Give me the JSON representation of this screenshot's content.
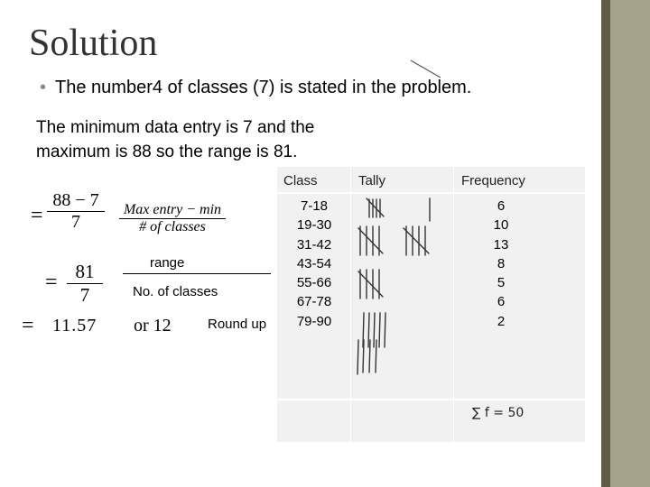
{
  "slide": {
    "title": "Solution",
    "bullet": "The number4 of classes (7) is stated  in the problem.",
    "paragraph": [
      "The minimum data entry is 7 and the",
      "maximum is 88  so the range is 81."
    ]
  },
  "work": {
    "eq_sign": "=",
    "frac1_num": "88 − 7",
    "frac1_den": "7",
    "formula_num": "Max entry − min",
    "formula_den": "# of  classes",
    "range_label": "range",
    "classes_label": "No. of classes",
    "frac2_num": "81",
    "frac2_den": "7",
    "result": "11.57",
    "or_text": "or 12",
    "round_up": "Round  up"
  },
  "table": {
    "headers": {
      "class": "Class",
      "tally": "Tally",
      "frequency": "Frequency"
    },
    "classes": [
      "7-18",
      "19-30",
      "31-42",
      "43-54",
      "55-66",
      "67-78",
      "79-90"
    ],
    "frequencies": [
      "6",
      "10",
      "13",
      "8",
      "5",
      "6",
      "2"
    ],
    "total": "∑ f   = 50"
  },
  "colors": {
    "table_bg": "#f1f1f1",
    "sidebar_dark": "#5f5c45",
    "sidebar_light": "#a6a38c"
  }
}
